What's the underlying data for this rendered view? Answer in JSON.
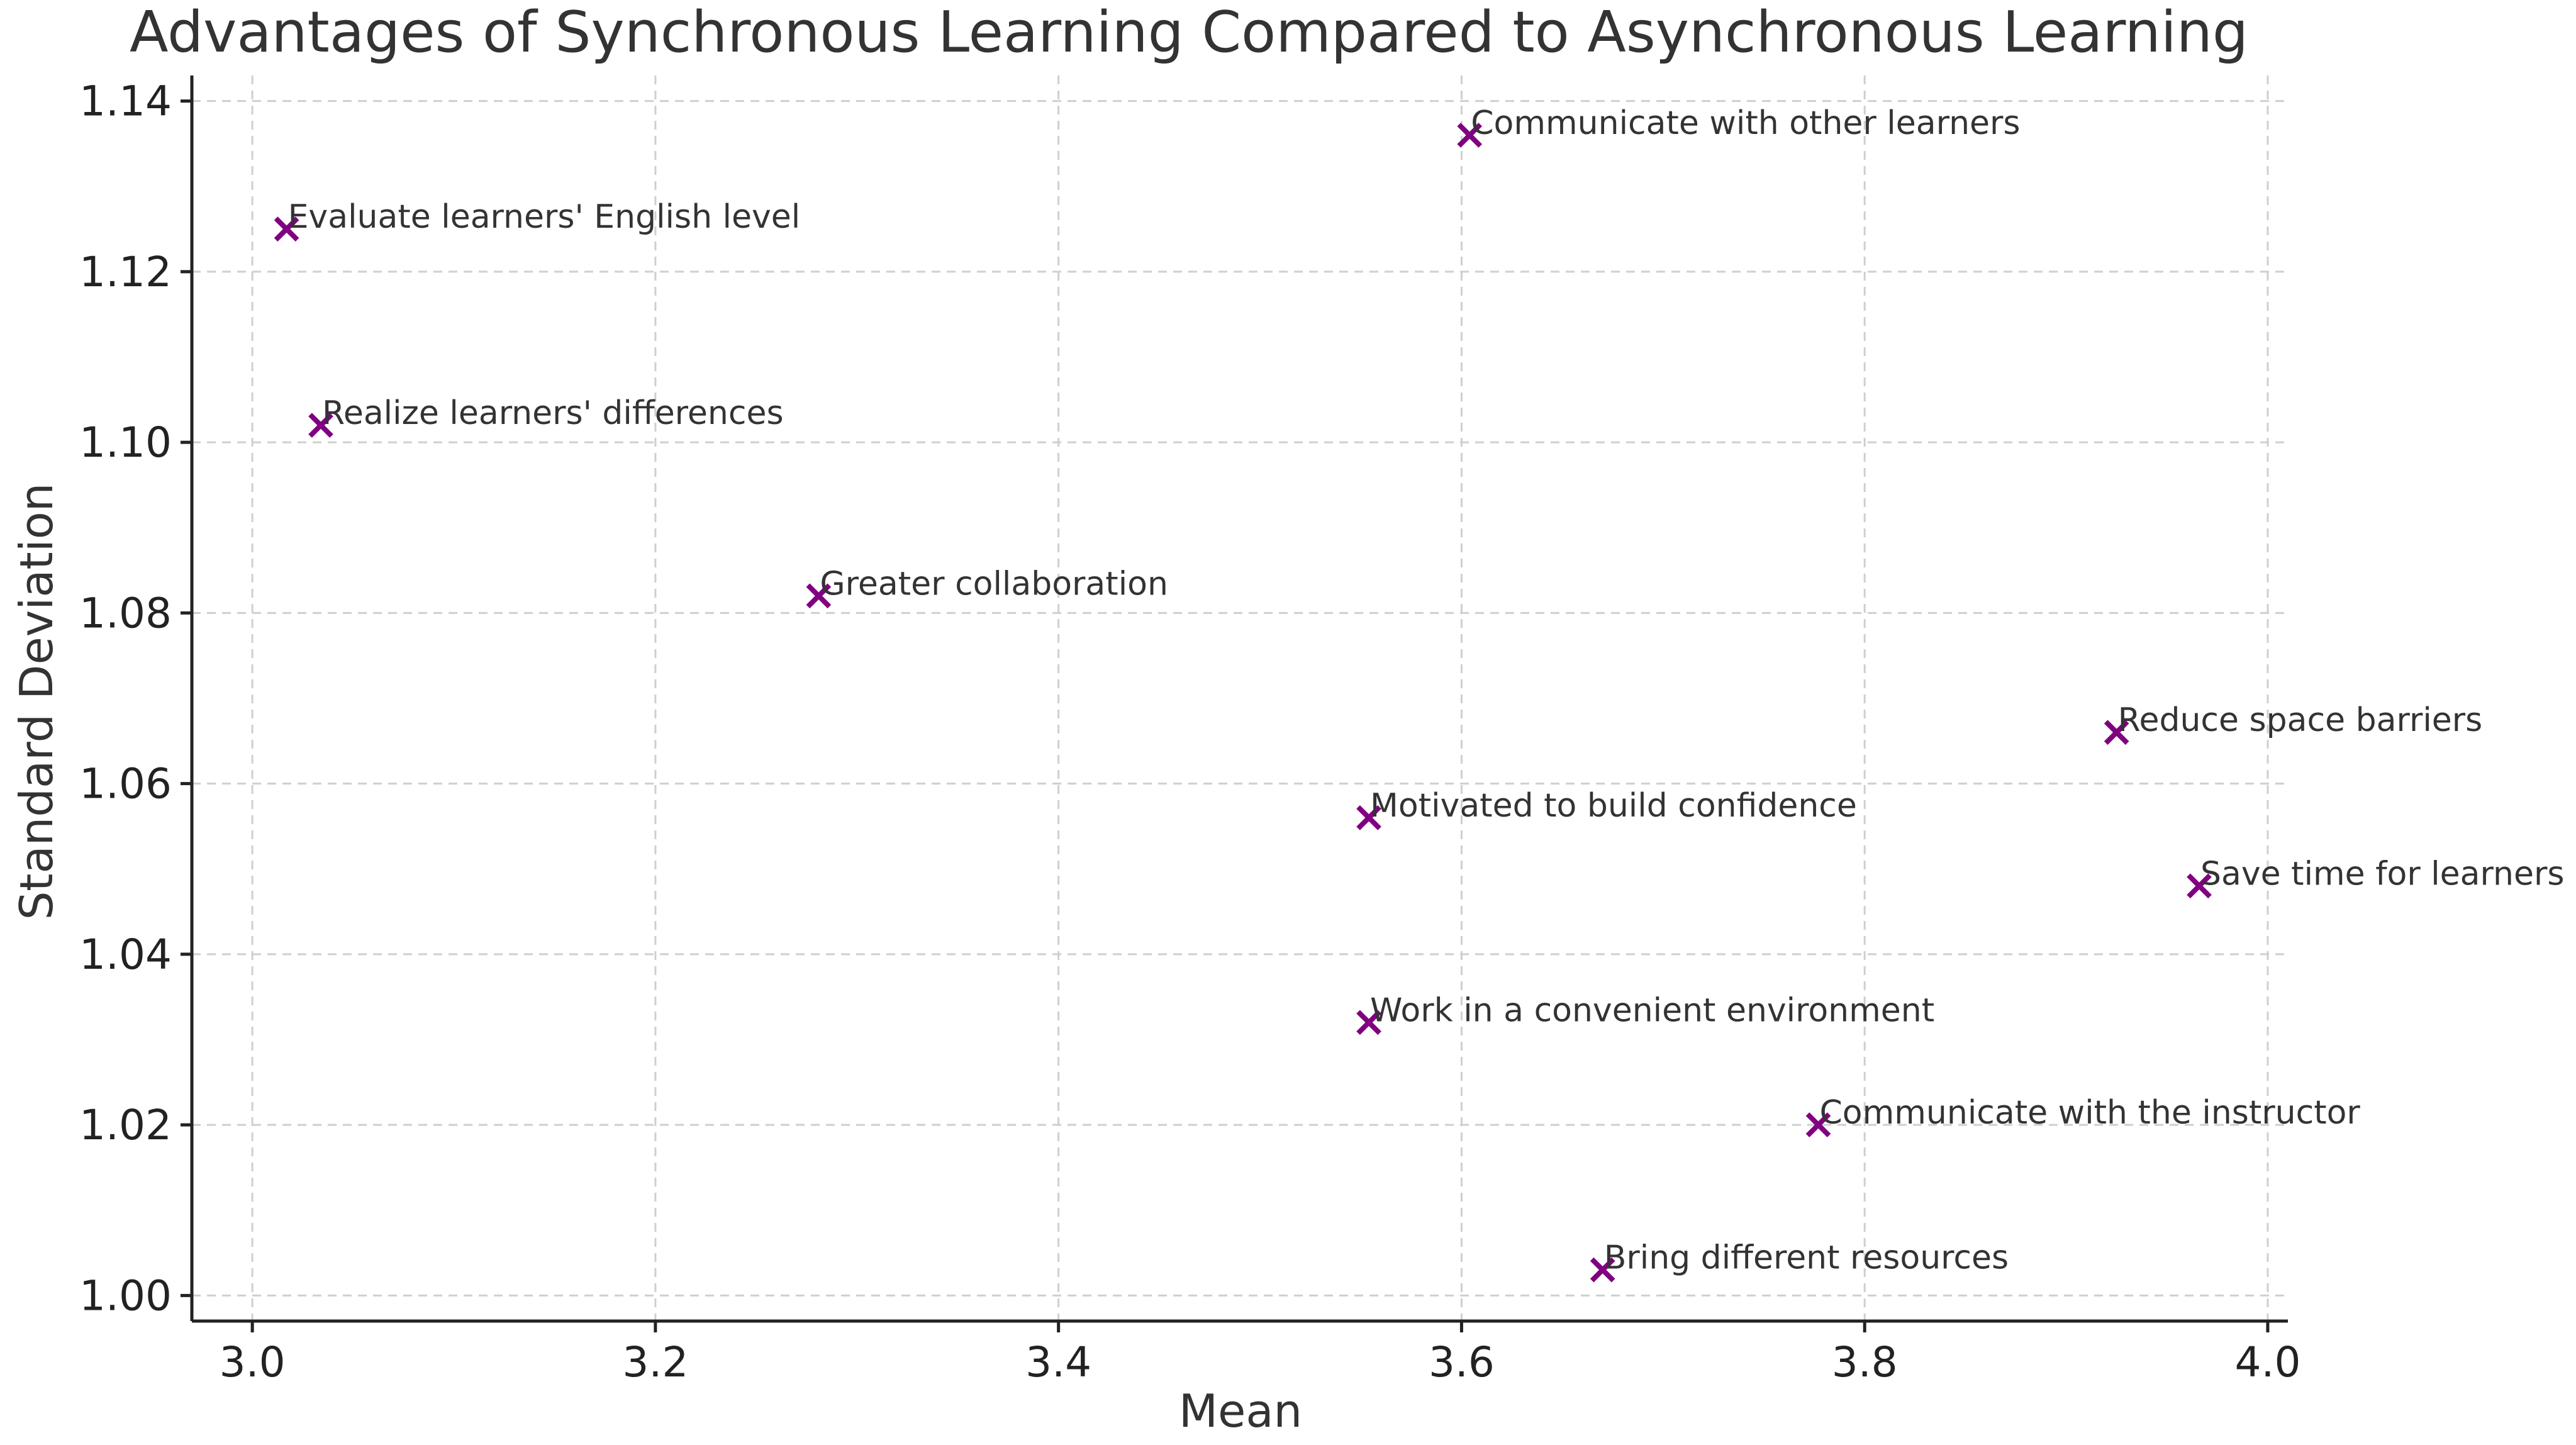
{
  "chart_data": {
    "type": "scatter",
    "title": "Advantages of Synchronous Learning Compared to Asynchronous Learning",
    "xlabel": "Mean",
    "ylabel": "Standard Deviation",
    "xlim": [
      2.97,
      4.01
    ],
    "ylim": [
      0.997,
      1.143
    ],
    "xticks": [
      3.0,
      3.2,
      3.4,
      3.6,
      3.8,
      4.0
    ],
    "xtick_labels": [
      "3.0",
      "3.2",
      "3.4",
      "3.6",
      "3.8",
      "4.0"
    ],
    "yticks": [
      1.0,
      1.02,
      1.04,
      1.06,
      1.08,
      1.1,
      1.12,
      1.14
    ],
    "ytick_labels": [
      "1.00",
      "1.02",
      "1.04",
      "1.06",
      "1.08",
      "1.10",
      "1.12",
      "1.14"
    ],
    "grid": true,
    "marker": "x",
    "marker_color": "#800080",
    "points": [
      {
        "x": 3.604,
        "y": 1.136,
        "label": "Communicate with other learners"
      },
      {
        "x": 3.017,
        "y": 1.125,
        "label": "Evaluate learners' English level"
      },
      {
        "x": 3.034,
        "y": 1.102,
        "label": "Realize learners' differences"
      },
      {
        "x": 3.281,
        "y": 1.082,
        "label": "Greater collaboration"
      },
      {
        "x": 3.925,
        "y": 1.066,
        "label": "Reduce space barriers"
      },
      {
        "x": 3.554,
        "y": 1.056,
        "label": "Motivated to build confidence"
      },
      {
        "x": 3.966,
        "y": 1.048,
        "label": "Save time for learners"
      },
      {
        "x": 3.554,
        "y": 1.032,
        "label": "Work in a convenient environment"
      },
      {
        "x": 3.777,
        "y": 1.02,
        "label": "Communicate with the instructor"
      },
      {
        "x": 3.67,
        "y": 1.003,
        "label": "Bring different resources"
      }
    ]
  }
}
